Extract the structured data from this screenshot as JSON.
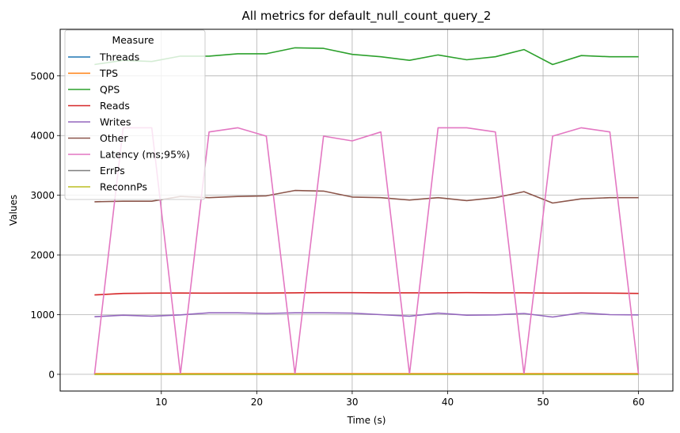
{
  "chart_data": {
    "type": "line",
    "title": "All metrics for default_null_count_query_2",
    "xlabel": "Time (s)",
    "ylabel": "Values",
    "xlim": [
      -0.6,
      63.6
    ],
    "ylim": [
      -280,
      5780
    ],
    "xticks": [
      10,
      20,
      30,
      40,
      50,
      60
    ],
    "yticks": [
      0,
      1000,
      2000,
      3000,
      4000,
      5000
    ],
    "grid": true,
    "legend": {
      "title": "Measure",
      "placement": "top-left"
    },
    "x": [
      3,
      6,
      9,
      12,
      15,
      18,
      21,
      24,
      27,
      30,
      33,
      36,
      39,
      42,
      45,
      48,
      51,
      54,
      57,
      60
    ],
    "series": [
      {
        "name": "Threads",
        "color": "#1f77b4",
        "values": [
          8,
          8,
          8,
          8,
          8,
          8,
          8,
          8,
          8,
          8,
          8,
          8,
          8,
          8,
          8,
          8,
          8,
          8,
          8,
          8
        ]
      },
      {
        "name": "TPS",
        "color": "#ff7f0e",
        "values": [
          12,
          12,
          12,
          12,
          12,
          12,
          12,
          12,
          12,
          12,
          12,
          12,
          12,
          12,
          12,
          12,
          12,
          12,
          12,
          12
        ]
      },
      {
        "name": "QPS",
        "color": "#2ca02c",
        "values": [
          5190,
          5260,
          5240,
          5330,
          5330,
          5370,
          5370,
          5470,
          5460,
          5360,
          5320,
          5260,
          5350,
          5270,
          5320,
          5440,
          5190,
          5340,
          5320,
          5320
        ]
      },
      {
        "name": "Reads",
        "color": "#d62728",
        "values": [
          1330,
          1355,
          1360,
          1362,
          1360,
          1362,
          1362,
          1365,
          1368,
          1368,
          1366,
          1365,
          1366,
          1368,
          1365,
          1366,
          1360,
          1362,
          1360,
          1355
        ]
      },
      {
        "name": "Writes",
        "color": "#9467bd",
        "values": [
          965,
          990,
          975,
          995,
          1030,
          1030,
          1020,
          1030,
          1030,
          1025,
          1000,
          975,
          1025,
          990,
          995,
          1020,
          960,
          1030,
          1000,
          995
        ]
      },
      {
        "name": "Other",
        "color": "#8c564b",
        "values": [
          2890,
          2900,
          2900,
          2980,
          2960,
          2980,
          2990,
          3080,
          3070,
          2970,
          2960,
          2920,
          2960,
          2910,
          2960,
          3060,
          2870,
          2940,
          2960,
          2960
        ]
      },
      {
        "name": "Latency (ms;95%)",
        "color": "#e377c2",
        "values": [
          2,
          4130,
          4130,
          2,
          4060,
          4130,
          3990,
          2,
          3990,
          3910,
          4060,
          2,
          4130,
          4130,
          4060,
          2,
          3990,
          4130,
          4060,
          2
        ]
      },
      {
        "name": "ErrPs",
        "color": "#7f7f7f",
        "values": [
          0,
          0,
          0,
          0,
          0,
          0,
          0,
          0,
          0,
          0,
          0,
          0,
          0,
          0,
          0,
          0,
          0,
          0,
          0,
          0
        ]
      },
      {
        "name": "ReconnPs",
        "color": "#bcbd22",
        "values": [
          0,
          0,
          0,
          0,
          0,
          0,
          0,
          0,
          0,
          0,
          0,
          0,
          0,
          0,
          0,
          0,
          0,
          0,
          0,
          0
        ]
      }
    ]
  }
}
